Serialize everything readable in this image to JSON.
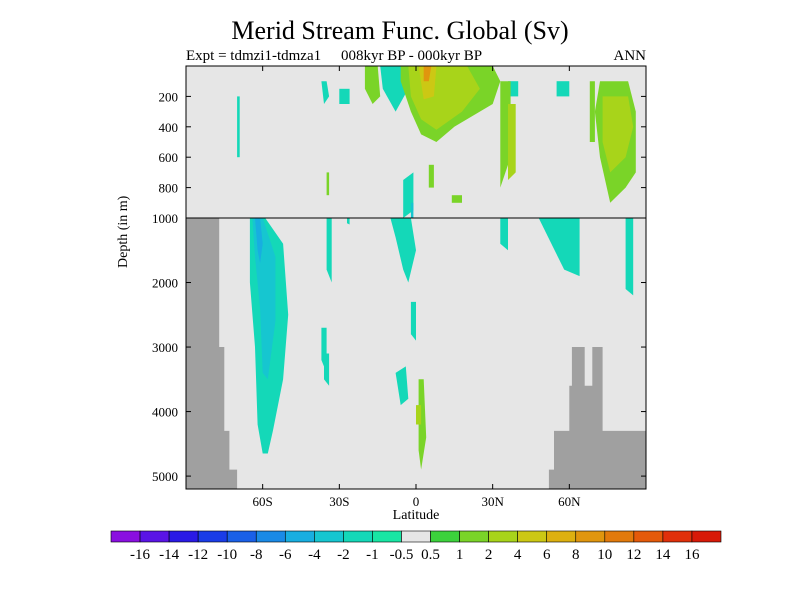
{
  "chart_data": {
    "type": "heatmap",
    "title": "Merid Stream Func. Global (Sv)",
    "experiment": "Expt = tdmzi1-tdmza1",
    "period": "008kyr BP - 000kyr BP",
    "season": "ANN",
    "xlabel": "Latitude",
    "ylabel": "Depth (in m)",
    "xlim": [
      -90,
      90
    ],
    "upper_panel": {
      "ylim": [
        0,
        1000
      ],
      "ticks": [
        200,
        400,
        600,
        800,
        1000
      ],
      "tick_labels": [
        "200",
        "400",
        "600",
        "800",
        "1000"
      ]
    },
    "lower_panel": {
      "ylim": [
        1000,
        5200
      ],
      "ticks": [
        2000,
        3000,
        4000,
        5000
      ],
      "tick_labels": [
        "2000",
        "3000",
        "4000",
        "5000"
      ]
    },
    "x_ticks": [
      -60,
      -30,
      0,
      30,
      60
    ],
    "x_tick_labels": [
      "60S",
      "30S",
      "0",
      "30N",
      "60N"
    ],
    "colorbar": {
      "levels": [
        "-16",
        "-14",
        "-12",
        "-10",
        "-8",
        "-6",
        "-4",
        "-2",
        "-1",
        "-0.5",
        "0.5",
        "1",
        "2",
        "4",
        "6",
        "8",
        "10",
        "12",
        "14",
        "16"
      ],
      "colors": [
        "#8a0fe0",
        "#5a14e6",
        "#2a1ae6",
        "#1a3ce8",
        "#1a60e8",
        "#1a8ae6",
        "#18aee0",
        "#16c6d0",
        "#14d8b8",
        "#18e6a4",
        "#e6e6e6",
        "#3cd23c",
        "#7ad428",
        "#a8d41a",
        "#ccc814",
        "#ddb010",
        "#e0960e",
        "#e27a0c",
        "#e45a0a",
        "#e0300a",
        "#d81a08"
      ]
    },
    "background_color": "#e6e6e6",
    "topography_color": "#a0a0a0",
    "features": [
      {
        "name": "southern-cell-deep",
        "value": -3,
        "lat_range": [
          -64,
          -50
        ],
        "depth_range": [
          1000,
          4700
        ]
      },
      {
        "name": "upper-tropics-positive",
        "value": 4,
        "lat_range": [
          -5,
          20
        ],
        "depth_range": [
          0,
          500
        ]
      },
      {
        "name": "north-atlantic-positive",
        "value": 2,
        "lat_range": [
          62,
          84
        ],
        "depth_range": [
          100,
          900
        ]
      }
    ]
  }
}
